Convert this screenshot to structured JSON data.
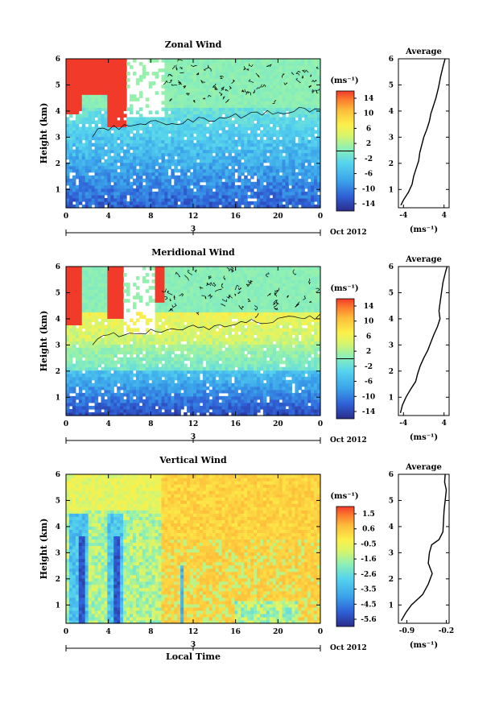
{
  "chart_data": [
    {
      "type": "heatmap",
      "title": "Zonal Wind",
      "ylabel": "Height (km)",
      "yticks": [
        1,
        2,
        3,
        4,
        5,
        6
      ],
      "ylim": [
        0.3,
        6.0
      ],
      "xticks": [
        "0",
        "4",
        "8",
        "12",
        "16",
        "20",
        "0"
      ],
      "xlim": [
        0,
        24
      ],
      "date_marker": "3",
      "date_label": "Oct 2012",
      "colorbar": {
        "unit": "(ms⁻¹)",
        "ticks": [
          "14",
          "10",
          "6",
          "2",
          "-2",
          "-6",
          "-10",
          "-14"
        ],
        "range": [
          -16,
          16
        ]
      },
      "zero_contour": true,
      "profile": {
        "title": "Average",
        "xlabel": "(ms⁻¹)",
        "xticks": [
          "-4",
          "4"
        ],
        "xlim": [
          -5,
          5
        ],
        "points": [
          [
            -4.5,
            0.4
          ],
          [
            -4.0,
            0.6
          ],
          [
            -3.0,
            0.9
          ],
          [
            -2.3,
            1.2
          ],
          [
            -2.0,
            1.5
          ],
          [
            -1.5,
            1.8
          ],
          [
            -1.0,
            2.1
          ],
          [
            -0.8,
            2.4
          ],
          [
            -0.4,
            2.7
          ],
          [
            0.0,
            3.0
          ],
          [
            0.6,
            3.3
          ],
          [
            1.1,
            3.6
          ],
          [
            1.4,
            3.9
          ],
          [
            1.9,
            4.2
          ],
          [
            2.4,
            4.5
          ],
          [
            2.9,
            4.9
          ],
          [
            3.3,
            5.3
          ],
          [
            3.8,
            5.7
          ],
          [
            4.2,
            6.0
          ]
        ]
      }
    },
    {
      "type": "heatmap",
      "title": "Meridional Wind",
      "ylabel": "Height (km)",
      "yticks": [
        1,
        2,
        3,
        4,
        5,
        6
      ],
      "ylim": [
        0.3,
        6.0
      ],
      "xticks": [
        "0",
        "4",
        "8",
        "12",
        "16",
        "20",
        "0"
      ],
      "xlim": [
        0,
        24
      ],
      "date_marker": "3",
      "date_label": "Oct 2012",
      "colorbar": {
        "unit": "(ms⁻¹)",
        "ticks": [
          "14",
          "10",
          "6",
          "2",
          "-2",
          "-6",
          "-10",
          "-14"
        ],
        "range": [
          -16,
          16
        ]
      },
      "zero_contour": true,
      "profile": {
        "title": "Average",
        "xlabel": "(ms⁻¹)",
        "xticks": [
          "-4",
          "4"
        ],
        "xlim": [
          -5,
          5
        ],
        "points": [
          [
            -4.6,
            0.4
          ],
          [
            -4.2,
            0.7
          ],
          [
            -3.5,
            1.0
          ],
          [
            -2.6,
            1.3
          ],
          [
            -1.6,
            1.6
          ],
          [
            -1.2,
            1.9
          ],
          [
            -0.7,
            2.2
          ],
          [
            0.0,
            2.5
          ],
          [
            0.8,
            2.8
          ],
          [
            1.4,
            3.1
          ],
          [
            2.0,
            3.4
          ],
          [
            2.7,
            3.7
          ],
          [
            3.2,
            4.0
          ],
          [
            3.0,
            4.3
          ],
          [
            3.2,
            4.6
          ],
          [
            3.5,
            5.0
          ],
          [
            3.8,
            5.4
          ],
          [
            4.3,
            5.8
          ],
          [
            4.6,
            6.0
          ]
        ]
      }
    },
    {
      "type": "heatmap",
      "title": "Vertical Wind",
      "ylabel": "Height (km)",
      "xlabel": "Local Time",
      "yticks": [
        1,
        2,
        3,
        4,
        5,
        6
      ],
      "ylim": [
        0.3,
        6.0
      ],
      "xticks": [
        "0",
        "4",
        "8",
        "12",
        "16",
        "20",
        "0"
      ],
      "xlim": [
        0,
        24
      ],
      "date_marker": "3",
      "date_label": "Oct 2012",
      "colorbar": {
        "unit": "(ms⁻¹)",
        "ticks": [
          "1.5",
          "0.6",
          "-0.5",
          "-1.6",
          "-2.6",
          "-3.5",
          "-4.5",
          "-5.6"
        ],
        "range": [
          -6.0,
          2.0
        ]
      },
      "zero_contour": false,
      "profile": {
        "title": "Average",
        "xlabel": "(ms⁻¹)",
        "xticks": [
          "-0.9",
          "-0.2"
        ],
        "xlim": [
          -1.05,
          -0.15
        ],
        "points": [
          [
            -1.0,
            0.4
          ],
          [
            -0.92,
            0.7
          ],
          [
            -0.82,
            1.0
          ],
          [
            -0.62,
            1.4
          ],
          [
            -0.52,
            1.8
          ],
          [
            -0.45,
            2.2
          ],
          [
            -0.52,
            2.6
          ],
          [
            -0.5,
            3.0
          ],
          [
            -0.46,
            3.3
          ],
          [
            -0.33,
            3.5
          ],
          [
            -0.26,
            3.8
          ],
          [
            -0.25,
            4.2
          ],
          [
            -0.24,
            4.6
          ],
          [
            -0.22,
            5.0
          ],
          [
            -0.2,
            5.4
          ],
          [
            -0.23,
            5.7
          ],
          [
            -0.22,
            6.0
          ]
        ]
      }
    }
  ]
}
